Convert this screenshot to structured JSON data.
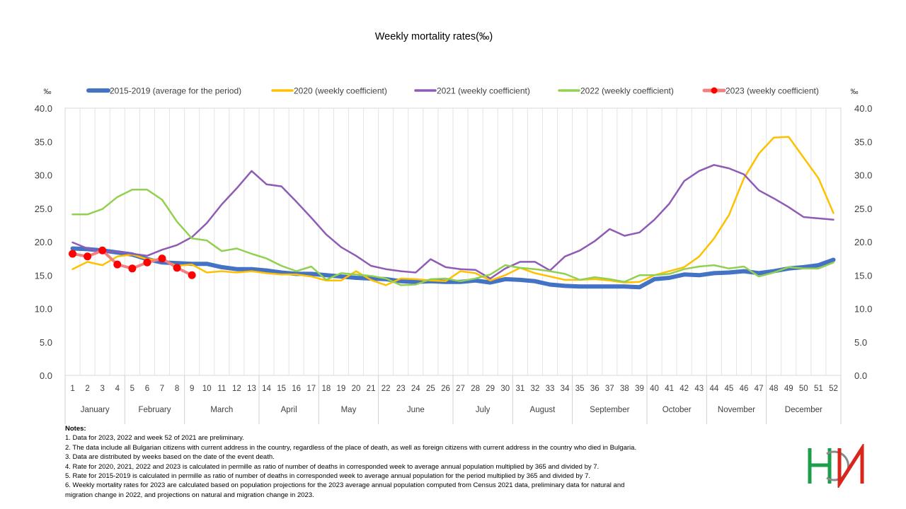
{
  "chart_data": {
    "type": "line",
    "title": "Weekly mortality rates(‰)",
    "y_unit_left": "‰",
    "y_unit_right": "‰",
    "ylim": [
      0,
      40
    ],
    "yticks": [
      "0.0",
      "5.0",
      "10.0",
      "15.0",
      "20.0",
      "25.0",
      "30.0",
      "35.0",
      "40.0"
    ],
    "grid": "vertical-category",
    "legend_position": "top",
    "weeks": [
      "1",
      "2",
      "3",
      "4",
      "5",
      "6",
      "7",
      "8",
      "9",
      "10",
      "11",
      "12",
      "13",
      "14",
      "15",
      "16",
      "17",
      "18",
      "19",
      "20",
      "21",
      "22",
      "23",
      "24",
      "25",
      "26",
      "27",
      "28",
      "29",
      "30",
      "31",
      "32",
      "33",
      "34",
      "35",
      "36",
      "37",
      "38",
      "39",
      "40",
      "41",
      "42",
      "43",
      "44",
      "45",
      "46",
      "47",
      "48",
      "49",
      "50",
      "51",
      "52"
    ],
    "months": [
      {
        "name": "January",
        "weeks": 4
      },
      {
        "name": "February",
        "weeks": 4
      },
      {
        "name": "March",
        "weeks": 5
      },
      {
        "name": "April",
        "weeks": 4
      },
      {
        "name": "May",
        "weeks": 4
      },
      {
        "name": "June",
        "weeks": 5
      },
      {
        "name": "July",
        "weeks": 4
      },
      {
        "name": "August",
        "weeks": 4
      },
      {
        "name": "September",
        "weeks": 5
      },
      {
        "name": "October",
        "weeks": 4
      },
      {
        "name": "November",
        "weeks": 4
      },
      {
        "name": "December",
        "weeks": 5
      }
    ],
    "series": [
      {
        "name": "2015-2019 (average for the period)",
        "color": "#4472C4",
        "width": 6,
        "values": [
          19.0,
          18.9,
          18.7,
          18.4,
          18.1,
          17.4,
          16.9,
          16.8,
          16.7,
          16.7,
          16.2,
          15.9,
          15.9,
          15.7,
          15.4,
          15.2,
          15.2,
          15.0,
          14.8,
          14.6,
          14.5,
          14.4,
          14.1,
          14.0,
          14.1,
          14.0,
          14.0,
          14.2,
          13.9,
          14.4,
          14.3,
          14.1,
          13.6,
          13.4,
          13.3,
          13.3,
          13.3,
          13.3,
          13.2,
          14.4,
          14.6,
          15.1,
          15.0,
          15.3,
          15.4,
          15.6,
          15.3,
          15.6,
          16.0,
          16.2,
          16.5,
          17.3
        ]
      },
      {
        "name": "2020 (weekly coefficient)",
        "color": "#FFC000",
        "width": 2.5,
        "values": [
          15.9,
          17.0,
          16.5,
          17.8,
          18.1,
          17.4,
          17.3,
          16.4,
          16.6,
          15.4,
          15.6,
          15.4,
          15.6,
          15.3,
          15.1,
          15.1,
          14.8,
          14.2,
          14.2,
          15.6,
          14.3,
          13.5,
          14.5,
          14.4,
          14.2,
          14.1,
          15.6,
          15.3,
          14.2,
          15.0,
          16.1,
          15.3,
          14.8,
          14.3,
          14.3,
          14.4,
          14.2,
          13.9,
          14.0,
          15.0,
          15.6,
          16.2,
          17.8,
          20.5,
          24.0,
          29.5,
          33.2,
          35.6,
          35.7,
          32.6,
          29.5,
          24.3
        ]
      },
      {
        "name": "2021 (weekly coefficient)",
        "color": "#8E5BB5",
        "width": 2.5,
        "values": [
          19.9,
          19.0,
          18.5,
          18.5,
          18.2,
          17.9,
          18.8,
          19.5,
          20.7,
          22.8,
          25.6,
          28.0,
          30.6,
          28.6,
          28.3,
          26.0,
          23.6,
          21.1,
          19.2,
          17.9,
          16.4,
          15.9,
          15.6,
          15.4,
          17.4,
          16.2,
          15.9,
          15.8,
          14.5,
          16.0,
          17.0,
          17.0,
          15.7,
          17.8,
          18.7,
          20.1,
          21.9,
          20.9,
          21.4,
          23.3,
          25.7,
          29.1,
          30.6,
          31.5,
          31.0,
          30.1,
          27.7,
          26.5,
          25.2,
          23.7,
          23.5,
          23.3
        ]
      },
      {
        "name": "2022 (weekly coefficient)",
        "color": "#92D050",
        "width": 2.5,
        "values": [
          24.1,
          24.1,
          24.9,
          26.7,
          27.8,
          27.8,
          26.3,
          23.0,
          20.5,
          20.2,
          18.6,
          19.0,
          18.2,
          17.5,
          16.4,
          15.6,
          16.3,
          14.3,
          15.3,
          15.1,
          14.9,
          14.5,
          13.5,
          13.6,
          14.4,
          14.5,
          14.1,
          14.5,
          15.1,
          16.5,
          16.1,
          15.9,
          15.6,
          15.2,
          14.3,
          14.7,
          14.4,
          14.0,
          15.0,
          15.0,
          15.2,
          15.9,
          16.3,
          16.5,
          16.0,
          16.3,
          14.8,
          15.4,
          16.2,
          16.0,
          16.0,
          16.9
        ]
      },
      {
        "name": "2023 (weekly coefficient)",
        "color": "#FF0000",
        "line_color": "#F28080",
        "width": 4,
        "markers": true,
        "values": [
          18.2,
          17.8,
          18.7,
          16.6,
          16.0,
          16.9,
          17.5,
          16.1,
          15.0
        ]
      }
    ]
  },
  "notes": {
    "heading": "Notes:",
    "items": [
      "1. Data for 2023, 2022 and week 52 of 2021 are preliminary.",
      "2. The data include all Bulgarian citizens with current address in the country, regardless of the place of death, as well as foreign citizens with current address in the country who died in Bulgaria.",
      "3. Data are distributed by weeks based on the date of the event death.",
      "4. Rate for 2020, 2021, 2022 and 2023 is calculated in permille as ratio of number of deaths in corresponded week to average annual population multiplied by 365 and divided by 7.",
      "5. Rate for 2015-2019 is calculated in permille as ratio of number of deaths in corresponded week to average annual population for the period multiplied by 365 and divided by 7.",
      "6. Weekly mortality rates for 2023 are calculated based on population projections for the 2023 average annual population computed from Census 2021 data, preliminary data for natural and",
      "migration change in 2022, and projections on natural and migration change in 2023."
    ]
  },
  "logo": {
    "name": "NSI logo",
    "colors": {
      "green": "#1E9E4A",
      "red": "#D9261C",
      "gray": "#8A8A8A"
    }
  }
}
